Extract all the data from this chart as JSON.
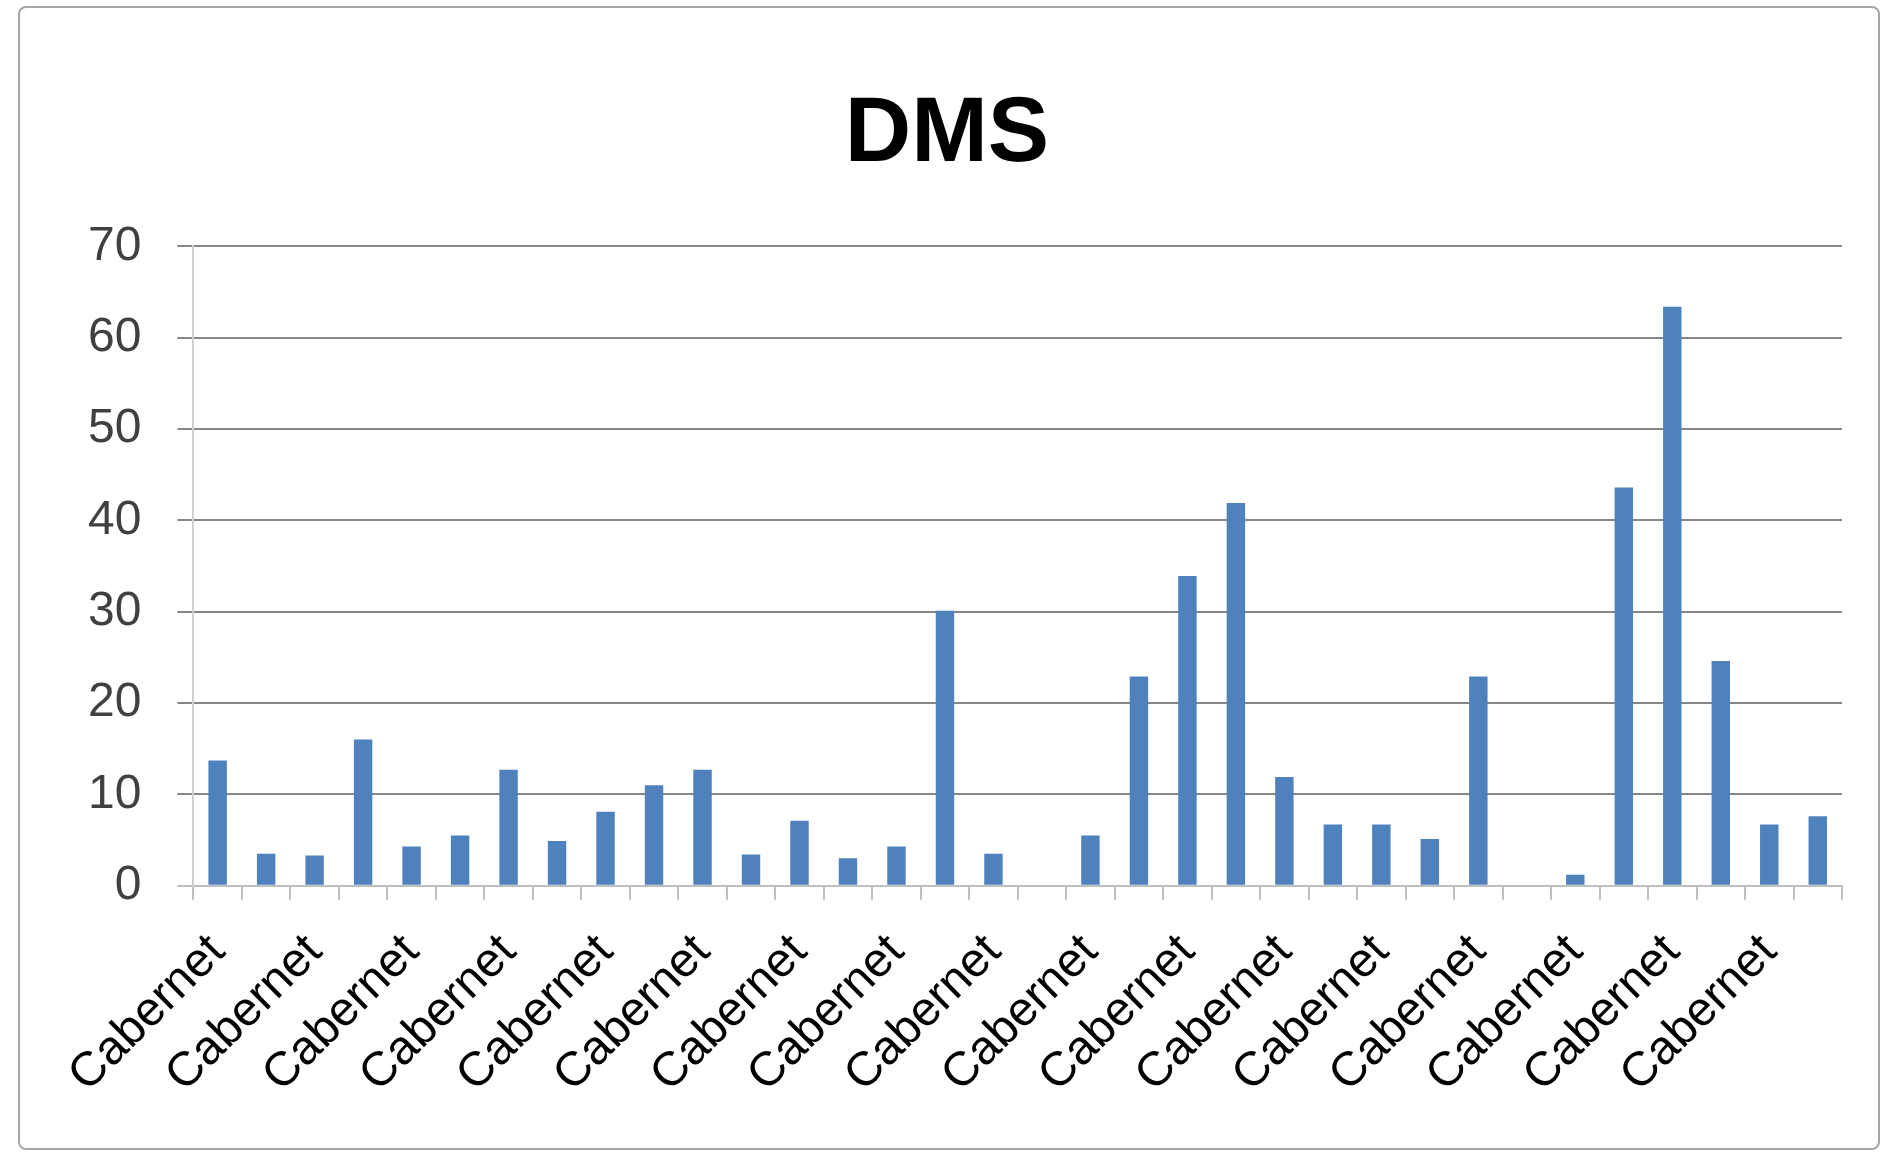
{
  "chart_data": {
    "type": "bar",
    "title": "DMS",
    "categories": [
      "Cabernet",
      null,
      "Cabernet",
      null,
      "Cabernet",
      null,
      "Cabernet",
      null,
      "Cabernet",
      null,
      "Cabernet",
      null,
      "Cabernet",
      null,
      "Cabernet",
      null,
      "Cabernet",
      null,
      "Cabernet",
      null,
      "Cabernet",
      null,
      "Cabernet",
      null,
      "Cabernet",
      null,
      "Cabernet",
      null,
      "Cabernet",
      null,
      "Cabernet",
      null,
      "Cabernet",
      null
    ],
    "values": [
      13.7,
      3.5,
      3.3,
      16.0,
      4.3,
      5.5,
      12.7,
      4.9,
      8.1,
      11.0,
      12.7,
      3.4,
      7.1,
      3.0,
      4.3,
      30.1,
      3.5,
      null,
      5.5,
      22.9,
      33.9,
      41.9,
      11.9,
      6.7,
      6.7,
      5.1,
      22.9,
      null,
      1.2,
      43.6,
      63.4,
      24.6,
      6.7,
      7.6
    ],
    "color": "#4f81bd",
    "ylim": [
      0,
      70
    ],
    "yticks": [
      0,
      10,
      20,
      30,
      40,
      50,
      60,
      70
    ],
    "grid": "y"
  }
}
